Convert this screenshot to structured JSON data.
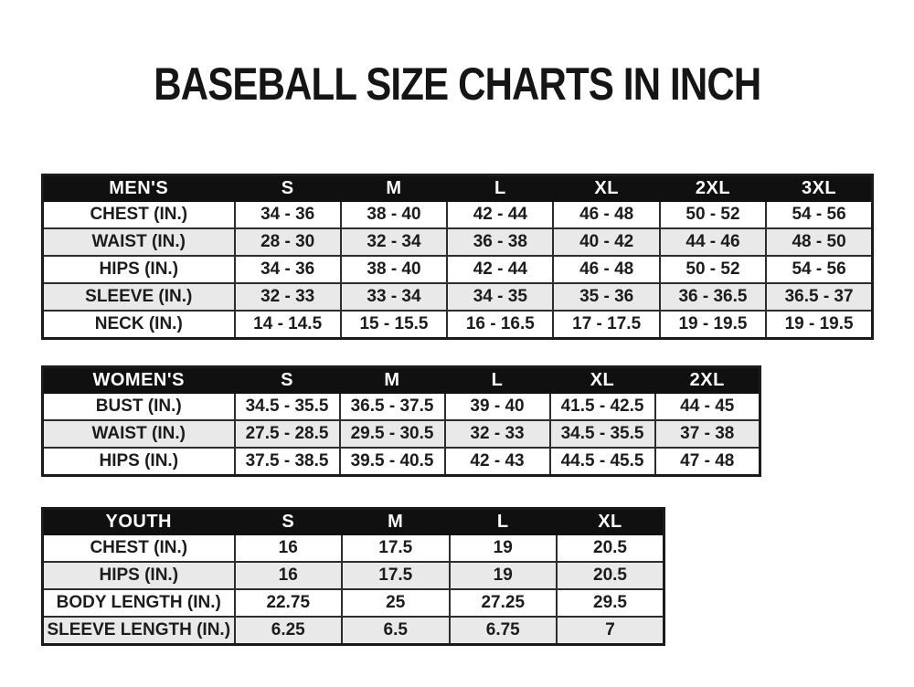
{
  "title": "BASEBALL SIZE CHARTS IN INCH",
  "colors": {
    "header_bg": "#101010",
    "header_text": "#ffffff",
    "row_alt_bg": "#e9e9e9",
    "border": "#2d2d2d",
    "text": "#1c1c1c",
    "page_bg": "#ffffff"
  },
  "tables": [
    {
      "name": "MEN'S",
      "columns": [
        "S",
        "M",
        "L",
        "XL",
        "2XL",
        "3XL"
      ],
      "rows": [
        {
          "label": "CHEST (IN.)",
          "values": [
            "34 - 36",
            "38 - 40",
            "42 - 44",
            "46 - 48",
            "50 - 52",
            "54 - 56"
          ]
        },
        {
          "label": "WAIST (IN.)",
          "values": [
            "28 - 30",
            "32 - 34",
            "36 - 38",
            "40 - 42",
            "44 - 46",
            "48 - 50"
          ]
        },
        {
          "label": "HIPS (IN.)",
          "values": [
            "34 - 36",
            "38 - 40",
            "42 - 44",
            "46 - 48",
            "50 - 52",
            "54 - 56"
          ]
        },
        {
          "label": "SLEEVE (IN.)",
          "values": [
            "32 - 33",
            "33 - 34",
            "34 - 35",
            "35 - 36",
            "36 - 36.5",
            "36.5 - 37"
          ]
        },
        {
          "label": "NECK (IN.)",
          "values": [
            "14 - 14.5",
            "15 - 15.5",
            "16 - 16.5",
            "17 - 17.5",
            "19 - 19.5",
            "19 - 19.5"
          ]
        }
      ]
    },
    {
      "name": "WOMEN'S",
      "columns": [
        "S",
        "M",
        "L",
        "XL",
        "2XL"
      ],
      "rows": [
        {
          "label": "BUST (IN.)",
          "values": [
            "34.5 - 35.5",
            "36.5 - 37.5",
            "39 - 40",
            "41.5 - 42.5",
            "44 - 45"
          ]
        },
        {
          "label": "WAIST (IN.)",
          "values": [
            "27.5 - 28.5",
            "29.5 - 30.5",
            "32 - 33",
            "34.5 - 35.5",
            "37 - 38"
          ]
        },
        {
          "label": "HIPS (IN.)",
          "values": [
            "37.5 - 38.5",
            "39.5 - 40.5",
            "42 - 43",
            "44.5 - 45.5",
            "47 - 48"
          ]
        }
      ]
    },
    {
      "name": "YOUTH",
      "columns": [
        "S",
        "M",
        "L",
        "XL"
      ],
      "rows": [
        {
          "label": "CHEST (IN.)",
          "values": [
            "16",
            "17.5",
            "19",
            "20.5"
          ]
        },
        {
          "label": "HIPS (IN.)",
          "values": [
            "16",
            "17.5",
            "19",
            "20.5"
          ]
        },
        {
          "label": "BODY LENGTH (IN.)",
          "values": [
            "22.75",
            "25",
            "27.25",
            "29.5"
          ]
        },
        {
          "label": "SLEEVE LENGTH (IN.)",
          "values": [
            "6.25",
            "6.5",
            "6.75",
            "7"
          ]
        }
      ]
    }
  ]
}
